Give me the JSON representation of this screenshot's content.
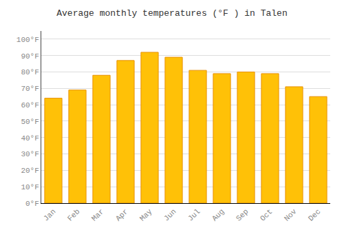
{
  "chart_data": {
    "type": "bar",
    "title": "Average monthly temperatures (°F ) in Talen",
    "categories": [
      "Jan",
      "Feb",
      "Mar",
      "Apr",
      "May",
      "Jun",
      "Jul",
      "Aug",
      "Sep",
      "Oct",
      "Nov",
      "Dec"
    ],
    "values": [
      64,
      69,
      78,
      87,
      92,
      89,
      81,
      79,
      80,
      79,
      71,
      65
    ],
    "color": "#FFC107",
    "ylim": [
      0,
      105
    ],
    "yticks": [
      {
        "value": 0,
        "label": "0°F"
      },
      {
        "value": 10,
        "label": "10°F"
      },
      {
        "value": 20,
        "label": "20°F"
      },
      {
        "value": 30,
        "label": "30°F"
      },
      {
        "value": 40,
        "label": "40°F"
      },
      {
        "value": 50,
        "label": "50°F"
      },
      {
        "value": 60,
        "label": "60°F"
      },
      {
        "value": 70,
        "label": "70°F"
      },
      {
        "value": 80,
        "label": "80°F"
      },
      {
        "value": 90,
        "label": "90°F"
      },
      {
        "value": 100,
        "label": "100°F"
      }
    ],
    "grid": true
  }
}
